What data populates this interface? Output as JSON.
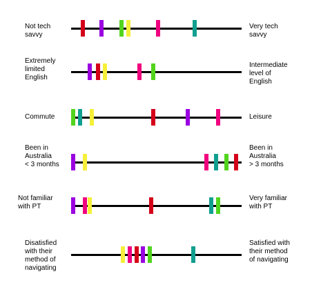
{
  "colors": {
    "red": "#d4001a",
    "purple": "#9a00e0",
    "green": "#52d41e",
    "yellow": "#f5ef3a",
    "pink": "#f0007e",
    "teal": "#119f8f"
  },
  "scales": [
    {
      "left_label": "Not tech\nsavvy",
      "right_label": "Very tech\nsavvy",
      "markers": [
        {
          "color": "red",
          "value": 0.06
        },
        {
          "color": "purple",
          "value": 0.17
        },
        {
          "color": "green",
          "value": 0.29
        },
        {
          "color": "yellow",
          "value": 0.33
        },
        {
          "color": "pink",
          "value": 0.51
        },
        {
          "color": "teal",
          "value": 0.73
        }
      ]
    },
    {
      "left_label": "Extremely\nlimited\nEnglish",
      "right_label": "Intermediate\nlevel of\nEnglish",
      "markers": [
        {
          "color": "purple",
          "value": 0.1
        },
        {
          "color": "red",
          "value": 0.15
        },
        {
          "color": "yellow",
          "value": 0.19
        },
        {
          "color": "pink",
          "value": 0.4
        },
        {
          "color": "green",
          "value": 0.48
        }
      ]
    },
    {
      "left_label": "Commute",
      "right_label": "Leisure",
      "markers": [
        {
          "color": "green",
          "value": 0.0
        },
        {
          "color": "teal",
          "value": 0.04
        },
        {
          "color": "yellow",
          "value": 0.11
        },
        {
          "color": "red",
          "value": 0.48
        },
        {
          "color": "purple",
          "value": 0.69
        },
        {
          "color": "pink",
          "value": 0.87
        }
      ]
    },
    {
      "left_label": "Been in\nAustralia\n< 3 months",
      "right_label": "Been in\nAustralia\n> 3 months",
      "markers": [
        {
          "color": "purple",
          "value": 0.0
        },
        {
          "color": "yellow",
          "value": 0.07
        },
        {
          "color": "pink",
          "value": 0.8
        },
        {
          "color": "teal",
          "value": 0.86
        },
        {
          "color": "green",
          "value": 0.92
        },
        {
          "color": "red",
          "value": 0.98
        }
      ]
    },
    {
      "left_label": "Not familiar\nwith PT",
      "right_label": "Very familiar\nwith PT",
      "markers": [
        {
          "color": "purple",
          "value": 0.0
        },
        {
          "color": "pink",
          "value": 0.07
        },
        {
          "color": "yellow",
          "value": 0.1
        },
        {
          "color": "red",
          "value": 0.47
        },
        {
          "color": "teal",
          "value": 0.83
        },
        {
          "color": "green",
          "value": 0.87
        }
      ]
    },
    {
      "left_label": "Disatisfied\nwith their\nmethod of\nnavigating",
      "right_label": "Satisfied with\ntheir method\nof navigating",
      "markers": [
        {
          "color": "yellow",
          "value": 0.3
        },
        {
          "color": "pink",
          "value": 0.34
        },
        {
          "color": "red",
          "value": 0.38
        },
        {
          "color": "purple",
          "value": 0.42
        },
        {
          "color": "green",
          "value": 0.46
        },
        {
          "color": "teal",
          "value": 0.72
        }
      ]
    }
  ]
}
